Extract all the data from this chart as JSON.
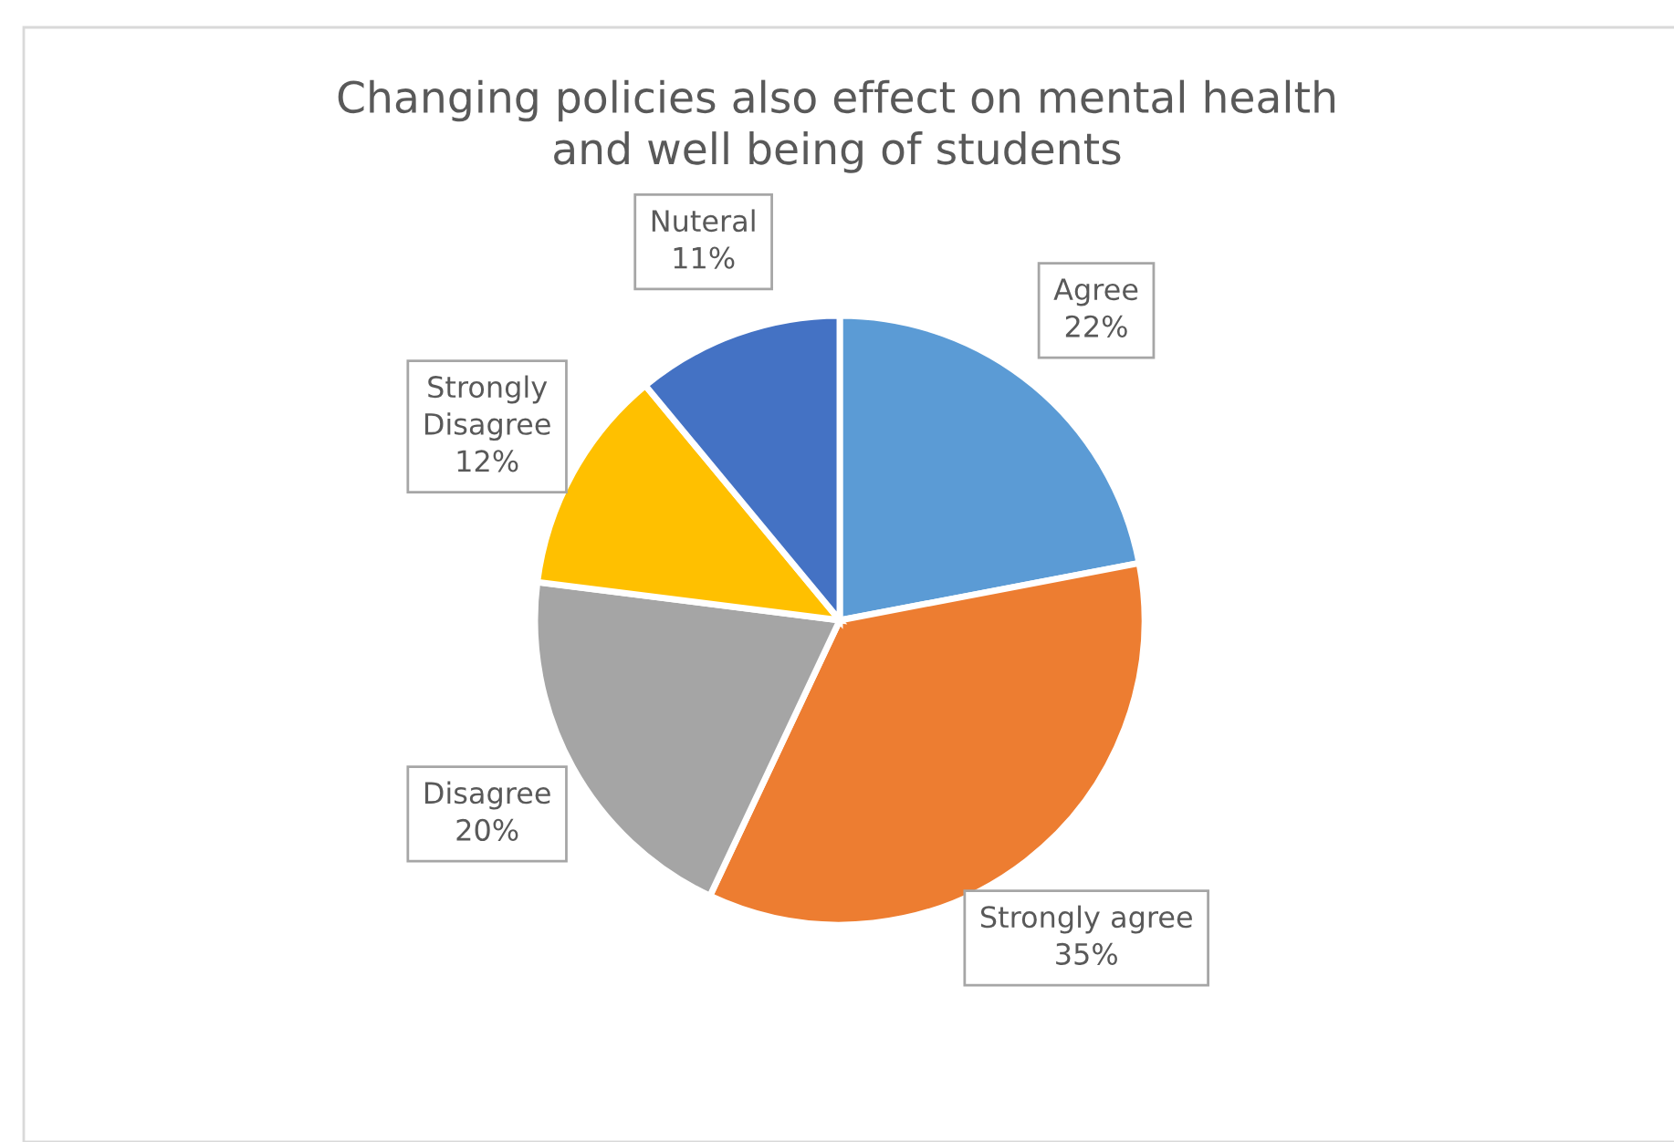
{
  "chart_data": {
    "type": "pie",
    "title": "Changing policies also effect on mental health\nand well being of students",
    "categories": [
      "Agree",
      "Strongly agree",
      "Disagree",
      "Strongly Disagree",
      "Nuteral"
    ],
    "values": [
      22,
      35,
      20,
      12,
      11
    ],
    "colors": [
      "#5b9bd5",
      "#ed7d31",
      "#a5a5a5",
      "#ffc000",
      "#4472c4"
    ],
    "value_labels": [
      "22%",
      "35%",
      "20%",
      "12%",
      "11%"
    ],
    "legend": false
  }
}
